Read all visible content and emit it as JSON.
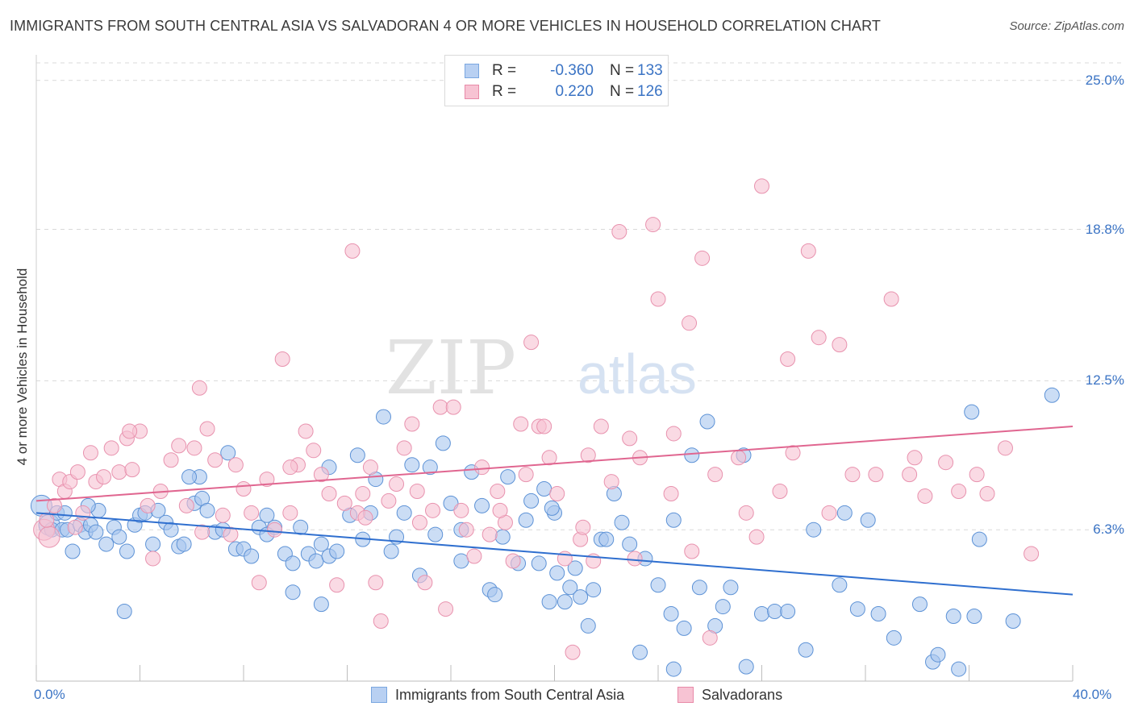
{
  "header": {
    "title": "IMMIGRANTS FROM SOUTH CENTRAL ASIA VS SALVADORAN 4 OR MORE VEHICLES IN HOUSEHOLD CORRELATION CHART",
    "source": "Source: ZipAtlas.com"
  },
  "watermark": {
    "zip": "ZIP",
    "atlas": "atlas"
  },
  "legend": {
    "r_label": "R =",
    "n_label": "N =",
    "rows": [
      {
        "r": "-0.360",
        "n": "133",
        "color": "#7aa7e0",
        "fill": "#b8d0f2"
      },
      {
        "r": "0.220",
        "n": "126",
        "color": "#e88aa8",
        "fill": "#f7c3d3"
      }
    ]
  },
  "bottom_legend": [
    {
      "label": "Immigrants from South Central Asia"
    },
    {
      "label": "Salvadorans"
    }
  ],
  "colors": {
    "blue_fill": "#a9c6ee",
    "blue_stroke": "#5d92d6",
    "blue_line": "#2f6fcf",
    "pink_fill": "#f6c2d2",
    "pink_stroke": "#e892ae",
    "pink_line": "#e06690",
    "grid": "#d9d9d9",
    "tick_text": "#3a73c4"
  },
  "chart_data": {
    "type": "scatter",
    "title": "IMMIGRANTS FROM SOUTH CENTRAL ASIA VS SALVADORAN 4 OR MORE VEHICLES IN HOUSEHOLD CORRELATION CHART",
    "xlabel": "",
    "ylabel": "4 or more Vehicles in Household",
    "xlim": [
      0,
      40
    ],
    "ylim": [
      0,
      26.5
    ],
    "x_tick_labels": [
      "0.0%",
      "40.0%"
    ],
    "y_ticks": [
      6.3,
      12.5,
      18.8,
      25.0
    ],
    "y_tick_labels": [
      "6.3%",
      "12.5%",
      "18.8%",
      "25.0%"
    ],
    "grid": true,
    "legend_position": "top-center",
    "series": [
      {
        "name": "Immigrants from South Central Asia",
        "r": -0.36,
        "n": 133,
        "trend": {
          "x": [
            0,
            40
          ],
          "y": [
            7.0,
            3.6
          ]
        },
        "points": [
          [
            0.2,
            7.3
          ],
          [
            0.5,
            6.5
          ],
          [
            0.6,
            6.3
          ],
          [
            0.8,
            7.0
          ],
          [
            1.0,
            6.3
          ],
          [
            1.1,
            7.0
          ],
          [
            1.2,
            6.3
          ],
          [
            1.4,
            5.4
          ],
          [
            1.7,
            6.5
          ],
          [
            1.9,
            6.2
          ],
          [
            2.1,
            6.5
          ],
          [
            2.3,
            6.2
          ],
          [
            2.4,
            7.1
          ],
          [
            2.7,
            5.7
          ],
          [
            3.0,
            6.4
          ],
          [
            3.2,
            6.0
          ],
          [
            3.5,
            5.4
          ],
          [
            3.8,
            6.5
          ],
          [
            4.0,
            6.9
          ],
          [
            4.2,
            7.0
          ],
          [
            4.5,
            5.7
          ],
          [
            4.7,
            7.1
          ],
          [
            5.0,
            6.6
          ],
          [
            5.2,
            6.3
          ],
          [
            5.5,
            5.6
          ],
          [
            5.7,
            5.7
          ],
          [
            6.1,
            7.4
          ],
          [
            6.3,
            8.5
          ],
          [
            6.4,
            7.6
          ],
          [
            6.6,
            7.1
          ],
          [
            6.9,
            6.2
          ],
          [
            7.2,
            6.3
          ],
          [
            7.4,
            9.5
          ],
          [
            7.7,
            5.5
          ],
          [
            8.0,
            5.5
          ],
          [
            8.3,
            5.2
          ],
          [
            8.6,
            6.4
          ],
          [
            8.9,
            6.1
          ],
          [
            9.2,
            6.4
          ],
          [
            9.6,
            5.3
          ],
          [
            9.9,
            4.9
          ],
          [
            10.2,
            6.4
          ],
          [
            10.5,
            5.3
          ],
          [
            10.8,
            5.0
          ],
          [
            11.0,
            5.7
          ],
          [
            11.3,
            5.2
          ],
          [
            11.6,
            5.4
          ],
          [
            12.1,
            6.9
          ],
          [
            12.4,
            9.4
          ],
          [
            12.6,
            5.9
          ],
          [
            12.9,
            7.0
          ],
          [
            13.1,
            8.4
          ],
          [
            13.4,
            11.0
          ],
          [
            13.7,
            5.4
          ],
          [
            13.9,
            6.0
          ],
          [
            14.2,
            7.0
          ],
          [
            14.5,
            9.0
          ],
          [
            14.8,
            4.4
          ],
          [
            15.2,
            8.9
          ],
          [
            15.4,
            6.1
          ],
          [
            15.7,
            9.9
          ],
          [
            16.0,
            7.4
          ],
          [
            16.4,
            5.0
          ],
          [
            16.8,
            8.7
          ],
          [
            17.2,
            7.3
          ],
          [
            17.5,
            3.8
          ],
          [
            17.7,
            3.6
          ],
          [
            18.0,
            6.0
          ],
          [
            18.2,
            8.5
          ],
          [
            18.6,
            4.9
          ],
          [
            18.9,
            6.7
          ],
          [
            19.1,
            7.5
          ],
          [
            19.4,
            4.9
          ],
          [
            19.6,
            8.0
          ],
          [
            19.8,
            3.3
          ],
          [
            20.0,
            7.0
          ],
          [
            20.1,
            4.5
          ],
          [
            20.4,
            3.3
          ],
          [
            20.6,
            3.9
          ],
          [
            20.8,
            4.7
          ],
          [
            21.0,
            3.5
          ],
          [
            21.3,
            2.3
          ],
          [
            21.5,
            3.8
          ],
          [
            21.8,
            5.9
          ],
          [
            22.0,
            5.9
          ],
          [
            22.3,
            7.8
          ],
          [
            22.6,
            6.6
          ],
          [
            23.3,
            1.2
          ],
          [
            23.5,
            5.1
          ],
          [
            24.0,
            4.0
          ],
          [
            24.5,
            2.8
          ],
          [
            24.6,
            0.5
          ],
          [
            25.0,
            2.2
          ],
          [
            25.3,
            9.4
          ],
          [
            25.6,
            3.9
          ],
          [
            25.9,
            10.8
          ],
          [
            26.2,
            2.3
          ],
          [
            26.5,
            3.1
          ],
          [
            26.8,
            3.9
          ],
          [
            27.4,
            0.6
          ],
          [
            28.0,
            2.8
          ],
          [
            28.5,
            2.9
          ],
          [
            29.0,
            2.9
          ],
          [
            29.7,
            1.3
          ],
          [
            30.0,
            6.3
          ],
          [
            31.0,
            4.0
          ],
          [
            31.7,
            3.0
          ],
          [
            32.1,
            6.7
          ],
          [
            32.5,
            2.8
          ],
          [
            33.1,
            1.8
          ],
          [
            34.1,
            3.2
          ],
          [
            34.6,
            0.8
          ],
          [
            34.8,
            1.1
          ],
          [
            35.4,
            2.7
          ],
          [
            35.6,
            0.5
          ],
          [
            36.1,
            11.2
          ],
          [
            36.2,
            2.7
          ],
          [
            36.4,
            5.9
          ],
          [
            37.7,
            2.5
          ],
          [
            39.2,
            11.9
          ],
          [
            2.0,
            7.3
          ],
          [
            5.9,
            8.5
          ],
          [
            8.9,
            6.9
          ],
          [
            11.3,
            8.9
          ],
          [
            16.4,
            6.3
          ],
          [
            19.9,
            7.2
          ],
          [
            22.9,
            5.7
          ],
          [
            24.6,
            6.7
          ],
          [
            27.3,
            9.4
          ],
          [
            31.2,
            7.0
          ],
          [
            3.4,
            2.9
          ],
          [
            9.9,
            3.7
          ],
          [
            11.0,
            3.2
          ]
        ]
      },
      {
        "name": "Salvadorans",
        "r": 0.22,
        "n": 126,
        "trend": {
          "x": [
            0,
            40
          ],
          "y": [
            7.5,
            10.6
          ]
        },
        "points": [
          [
            0.3,
            6.3
          ],
          [
            0.5,
            6.0
          ],
          [
            0.7,
            7.3
          ],
          [
            0.9,
            8.4
          ],
          [
            1.1,
            7.9
          ],
          [
            1.3,
            8.3
          ],
          [
            1.6,
            8.7
          ],
          [
            1.8,
            7.0
          ],
          [
            2.1,
            9.5
          ],
          [
            2.3,
            8.3
          ],
          [
            2.6,
            8.5
          ],
          [
            2.9,
            9.7
          ],
          [
            3.2,
            8.7
          ],
          [
            3.5,
            10.1
          ],
          [
            3.7,
            8.8
          ],
          [
            4.0,
            10.4
          ],
          [
            4.3,
            7.3
          ],
          [
            4.5,
            5.1
          ],
          [
            4.8,
            7.9
          ],
          [
            5.2,
            9.2
          ],
          [
            5.5,
            9.8
          ],
          [
            5.8,
            7.3
          ],
          [
            6.1,
            9.7
          ],
          [
            6.3,
            12.2
          ],
          [
            6.6,
            10.5
          ],
          [
            6.9,
            9.2
          ],
          [
            7.2,
            6.9
          ],
          [
            7.5,
            6.1
          ],
          [
            7.7,
            9.0
          ],
          [
            8.0,
            8.0
          ],
          [
            8.3,
            7.0
          ],
          [
            8.6,
            4.1
          ],
          [
            8.9,
            8.4
          ],
          [
            9.2,
            6.3
          ],
          [
            9.5,
            13.4
          ],
          [
            9.8,
            7.0
          ],
          [
            10.1,
            9.0
          ],
          [
            10.4,
            10.4
          ],
          [
            10.7,
            9.6
          ],
          [
            11.0,
            8.6
          ],
          [
            11.3,
            7.8
          ],
          [
            11.6,
            4.0
          ],
          [
            11.9,
            7.4
          ],
          [
            12.2,
            17.9
          ],
          [
            12.4,
            7.0
          ],
          [
            12.6,
            7.8
          ],
          [
            12.9,
            8.9
          ],
          [
            13.1,
            4.1
          ],
          [
            13.3,
            2.5
          ],
          [
            13.6,
            7.5
          ],
          [
            13.9,
            8.2
          ],
          [
            14.2,
            9.7
          ],
          [
            14.5,
            10.7
          ],
          [
            14.7,
            7.9
          ],
          [
            15.0,
            4.1
          ],
          [
            15.3,
            7.1
          ],
          [
            15.6,
            11.4
          ],
          [
            15.8,
            3.0
          ],
          [
            16.1,
            11.4
          ],
          [
            16.4,
            7.1
          ],
          [
            16.6,
            6.3
          ],
          [
            16.9,
            5.2
          ],
          [
            17.2,
            8.9
          ],
          [
            17.5,
            6.1
          ],
          [
            17.8,
            7.9
          ],
          [
            18.1,
            6.6
          ],
          [
            18.4,
            5.0
          ],
          [
            18.7,
            10.7
          ],
          [
            18.9,
            8.6
          ],
          [
            19.1,
            14.1
          ],
          [
            19.4,
            10.6
          ],
          [
            19.6,
            10.6
          ],
          [
            19.8,
            9.3
          ],
          [
            20.1,
            7.8
          ],
          [
            20.4,
            5.1
          ],
          [
            20.7,
            1.2
          ],
          [
            21.0,
            5.9
          ],
          [
            21.3,
            9.4
          ],
          [
            21.5,
            5.0
          ],
          [
            21.8,
            10.6
          ],
          [
            22.2,
            8.3
          ],
          [
            22.5,
            18.7
          ],
          [
            22.9,
            10.1
          ],
          [
            23.1,
            5.1
          ],
          [
            23.3,
            9.3
          ],
          [
            23.8,
            19.0
          ],
          [
            24.0,
            15.9
          ],
          [
            24.5,
            7.8
          ],
          [
            25.2,
            14.9
          ],
          [
            25.3,
            5.4
          ],
          [
            25.7,
            17.6
          ],
          [
            26.0,
            1.8
          ],
          [
            26.2,
            8.6
          ],
          [
            27.1,
            9.3
          ],
          [
            27.4,
            7.0
          ],
          [
            27.8,
            6.0
          ],
          [
            28.0,
            20.6
          ],
          [
            28.7,
            7.9
          ],
          [
            29.0,
            13.4
          ],
          [
            29.8,
            17.9
          ],
          [
            30.2,
            14.3
          ],
          [
            30.6,
            7.0
          ],
          [
            31.0,
            14.0
          ],
          [
            31.5,
            8.6
          ],
          [
            32.4,
            8.6
          ],
          [
            33.0,
            15.9
          ],
          [
            33.7,
            8.6
          ],
          [
            34.3,
            7.7
          ],
          [
            35.1,
            9.1
          ],
          [
            35.6,
            7.9
          ],
          [
            36.3,
            8.6
          ],
          [
            36.7,
            7.8
          ],
          [
            37.4,
            9.7
          ],
          [
            38.4,
            5.3
          ],
          [
            0.4,
            6.7
          ],
          [
            1.5,
            6.4
          ],
          [
            3.6,
            10.4
          ],
          [
            6.4,
            6.2
          ],
          [
            9.8,
            8.9
          ],
          [
            12.7,
            6.8
          ],
          [
            14.8,
            6.6
          ],
          [
            17.9,
            7.1
          ],
          [
            21.1,
            6.4
          ],
          [
            24.6,
            10.3
          ],
          [
            29.2,
            9.5
          ],
          [
            33.9,
            9.3
          ]
        ]
      }
    ]
  }
}
